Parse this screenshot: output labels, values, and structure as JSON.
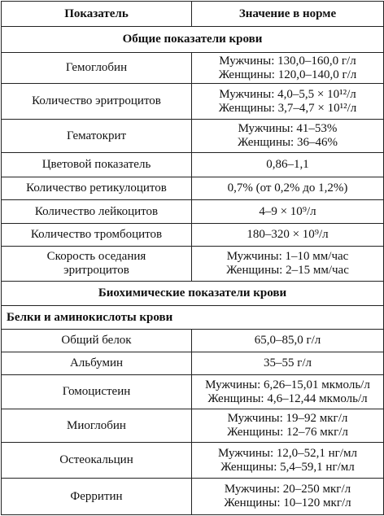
{
  "header": {
    "col1": "Показатель",
    "col2": "Значение в норме"
  },
  "rows": [
    {
      "section": "Общие показатели крови"
    },
    {
      "name": "Гемоглобин",
      "lines": [
        "Мужчины: 130,0–160,0 г/л",
        "Женщины: 120,0–140,0 г/л"
      ]
    },
    {
      "name": "Количество эритроцитов",
      "lines": [
        "Мужчины: 4,0–5,5 × 10¹²/л",
        "Женщины: 3,7–4,7 × 10¹²/л"
      ]
    },
    {
      "name": "Гематокрит",
      "lines": [
        "Мужчины: 41–53%",
        "Женщины: 36–46%"
      ]
    },
    {
      "name": "Цветовой показатель",
      "lines": [
        "0,86–1,1"
      ]
    },
    {
      "name": "Количество ретикулоцитов",
      "lines": [
        "0,7% (от 0,2% до 1,2%)"
      ]
    },
    {
      "name": "Количество лейкоцитов",
      "lines": [
        "4–9 × 10⁹/л"
      ]
    },
    {
      "name": "Количество тромбоцитов",
      "lines": [
        "180–320 × 10⁹/л"
      ]
    },
    {
      "name": "Скорость оседания эритроцитов",
      "lines": [
        "Мужчины: 1–10 мм/час",
        "Женщины: 2–15 мм/час"
      ]
    },
    {
      "section": "Биохимические показатели крови"
    },
    {
      "subsection": "Белки и аминокислоты крови"
    },
    {
      "name": "Общий белок",
      "lines": [
        "65,0–85,0 г/л"
      ]
    },
    {
      "name": "Альбумин",
      "lines": [
        "35–55 г/л"
      ]
    },
    {
      "name": "Гомоцистеин",
      "lines": [
        "Мужчины: 6,26–15,01 мкмоль/л",
        "Женщины: 4,6–12,44 мкмоль/л"
      ]
    },
    {
      "name": "Миоглобин",
      "lines": [
        "Мужчины: 19–92 мкг/л",
        "Женщины: 12–76 мкг/л"
      ]
    },
    {
      "name": "Остеокальцин",
      "lines": [
        "Мужчины: 12,0–52,1 нг/мл",
        "Женщины: 5,4–59,1 нг/мл"
      ]
    },
    {
      "name": "Ферритин",
      "lines": [
        "Мужчины: 20–250 мкг/л",
        "Женщины: 10–120 мкг/л"
      ]
    }
  ]
}
